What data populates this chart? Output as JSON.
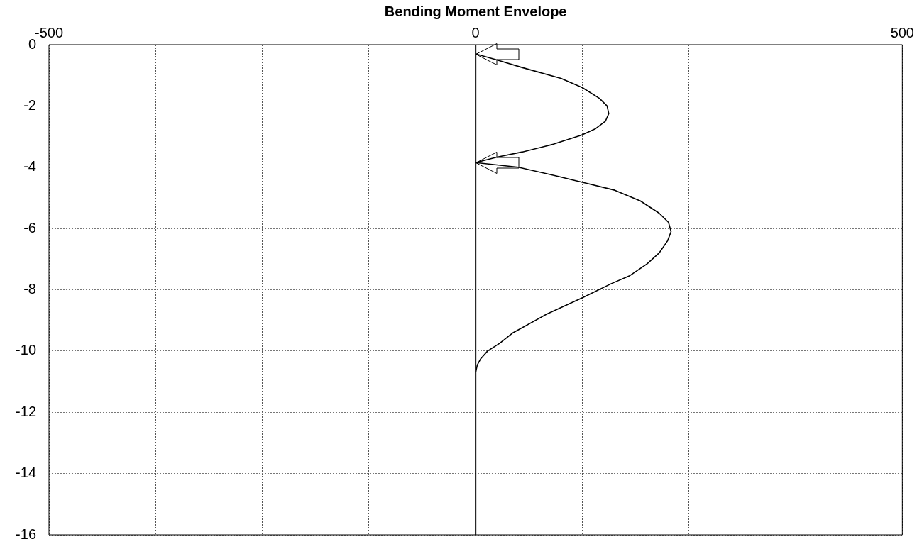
{
  "chart_data": {
    "type": "line",
    "title": "Bending Moment Envelope",
    "x": [
      0,
      25,
      55,
      100,
      125,
      145,
      154,
      156,
      152,
      140,
      124,
      91,
      55,
      25,
      0,
      50,
      97,
      126,
      163,
      193,
      215,
      226,
      229,
      225,
      215,
      201,
      180,
      159,
      126,
      83,
      44,
      28,
      14,
      6,
      2,
      0
    ],
    "values": [
      -0.3,
      -0.5,
      -0.75,
      -1.1,
      -1.4,
      -1.75,
      -2.0,
      -2.25,
      -2.5,
      -2.75,
      -2.95,
      -3.25,
      -3.5,
      -3.67,
      -3.85,
      -4.0,
      -4.3,
      -4.5,
      -4.75,
      -5.1,
      -5.5,
      -5.8,
      -6.1,
      -6.4,
      -6.8,
      -7.15,
      -7.55,
      -7.8,
      -8.25,
      -8.8,
      -9.4,
      -9.75,
      -10.0,
      -10.25,
      -10.45,
      -10.7
    ],
    "color": "#000000",
    "xlim": [
      -500,
      500
    ],
    "xticks": [
      -500,
      {
        "value": -375,
        "label": null
      },
      {
        "value": -250,
        "label": null
      },
      {
        "value": -125,
        "label": null
      },
      0,
      {
        "value": 125,
        "label": null
      },
      {
        "value": 250,
        "label": null
      },
      {
        "value": 375,
        "label": null
      },
      500
    ],
    "ylim": [
      -16,
      0
    ],
    "yticks": [
      0,
      -2,
      -4,
      -6,
      -8,
      -10,
      -12,
      -14,
      -16
    ],
    "grid": true,
    "ref_lines": [
      {
        "axis": "x",
        "value": 0,
        "color": "#000000"
      }
    ]
  }
}
